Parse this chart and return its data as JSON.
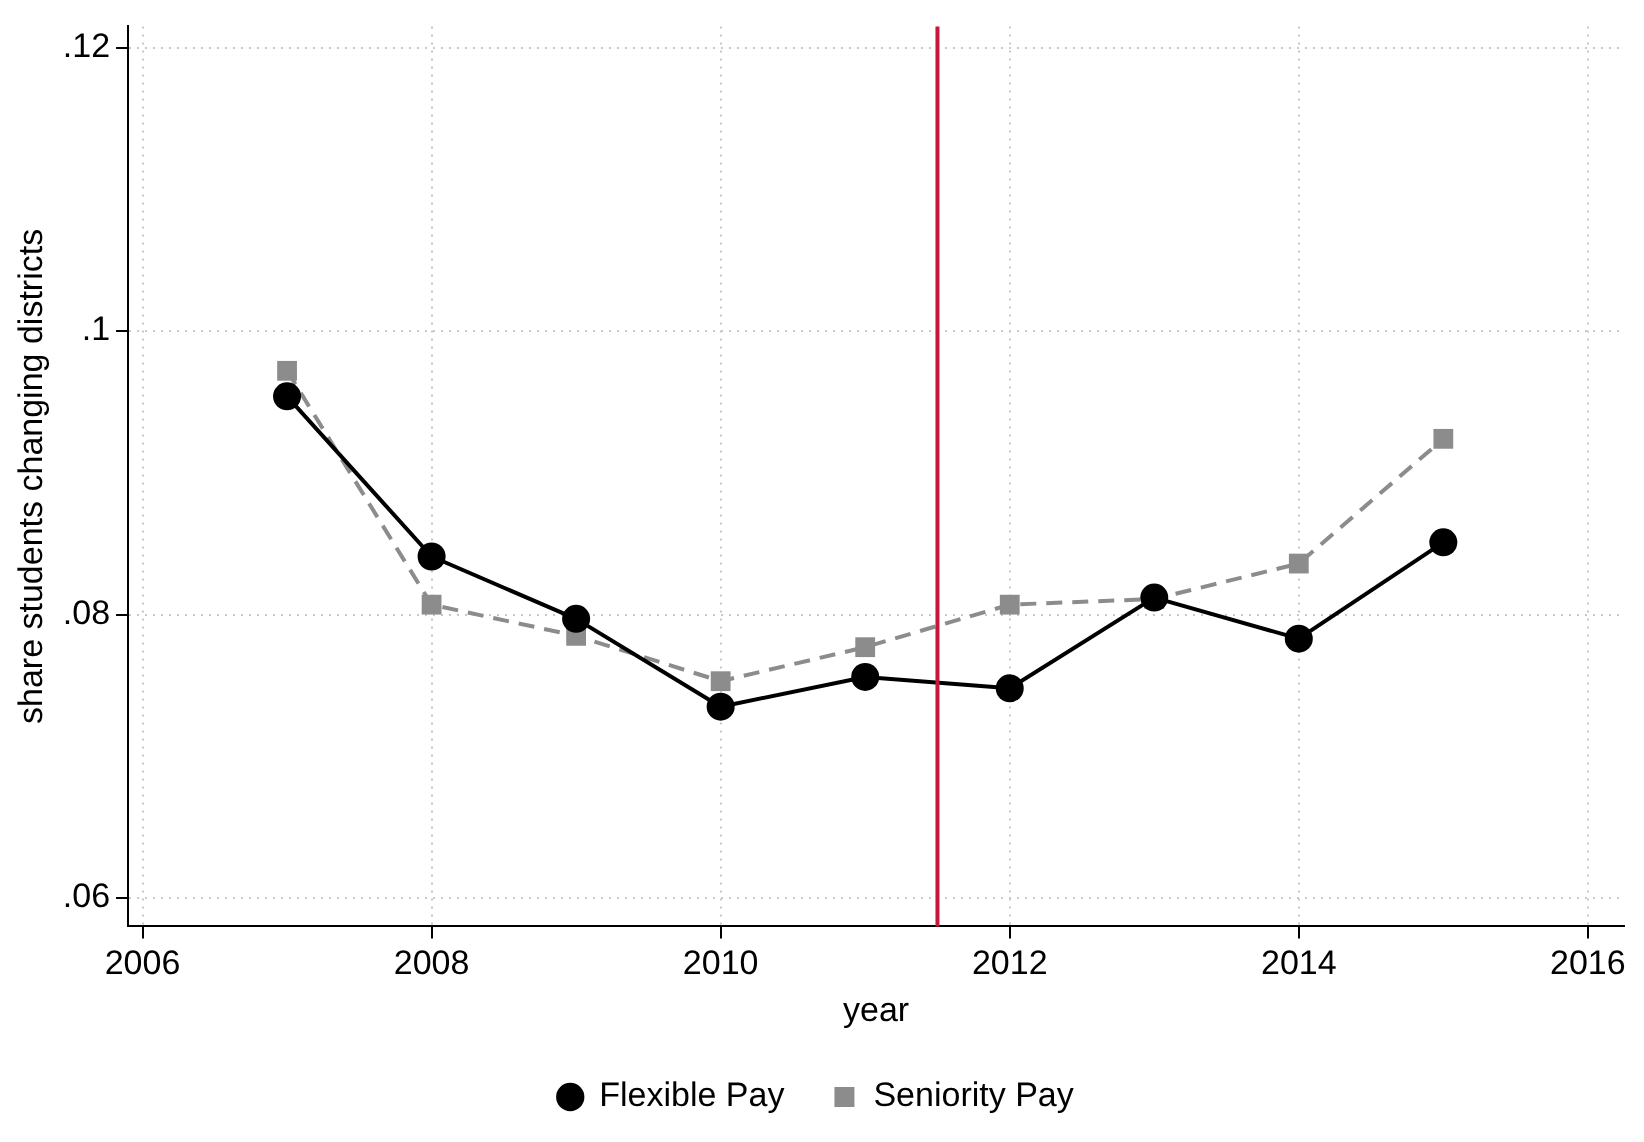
{
  "chart_data": {
    "type": "line",
    "xlabel": "year",
    "ylabel": "share students changing districts",
    "x": [
      2007,
      2008,
      2009,
      2010,
      2011,
      2012,
      2013,
      2014,
      2015
    ],
    "series": [
      {
        "name": "Flexible Pay",
        "color": "#000000",
        "marker": "circle",
        "line_style": "solid",
        "values": [
          0.0954,
          0.0841,
          0.0797,
          0.0735,
          0.0756,
          0.0748,
          0.0812,
          0.0783,
          0.0851
        ]
      },
      {
        "name": "Seniority Pay",
        "color": "#8c8c8c",
        "marker": "square",
        "line_style": "dashed",
        "values": [
          0.0972,
          0.0807,
          0.0785,
          0.0753,
          0.0777,
          0.0807,
          0.0811,
          0.0836,
          0.0924
        ]
      }
    ],
    "xlim": [
      2005.9,
      2016.25
    ],
    "xticks": [
      2006,
      2008,
      2010,
      2012,
      2014,
      2016
    ],
    "ylim": [
      0.058,
      0.1215
    ],
    "yticks": [
      {
        "value": 0.06,
        "label": ".06"
      },
      {
        "value": 0.08,
        "label": ".08"
      },
      {
        "value": 0.1,
        "label": ".1"
      },
      {
        "value": 0.12,
        "label": ".12"
      }
    ],
    "ref_lines": [
      {
        "axis": "x",
        "value": 2011.5,
        "color": "#c8173c"
      }
    ],
    "grid": true,
    "legend": "bottom"
  }
}
